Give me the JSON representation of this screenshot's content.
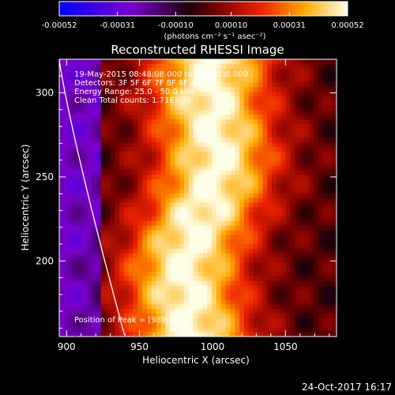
{
  "chart_data": {
    "type": "heatmap",
    "title": "Reconstructed RHESSI Image",
    "xlabel": "Heliocentric X (arcsec)",
    "ylabel": "Heliocentric Y (arcsec)",
    "xlim": [
      895,
      1085
    ],
    "ylim": [
      155,
      320
    ],
    "xticks": [
      900,
      950,
      1000,
      1050
    ],
    "yticks": [
      200,
      250,
      300
    ],
    "colorbar": {
      "ticks": [
        -0.00052,
        -0.00031,
        -0.0001,
        0.0001,
        0.00031,
        0.00052
      ],
      "tick_labels": [
        "-0.00052",
        "-0.00031",
        "-0.00010",
        "0.00010",
        "0.00031",
        "0.00052"
      ],
      "units_text": "(photons cm⁻² s⁻¹ asec⁻²)",
      "min": -0.00052,
      "max": 0.00052
    },
    "annotations": {
      "time": "19-May-2015 08:48:08.000 to 08:58:08.000",
      "detectors": "Detectors: 3F 5F 6F 7F 8F 9F A0F",
      "energy": "Energy Range: 25.0 - 50.0 keV",
      "method": "Clean     Total counts: 1.71E+04",
      "peak": "Position of Peak = [989,183]"
    },
    "peak": {
      "x": 989,
      "y": 183
    }
  },
  "footer": {
    "date": "24-Oct-2017 16:17"
  }
}
